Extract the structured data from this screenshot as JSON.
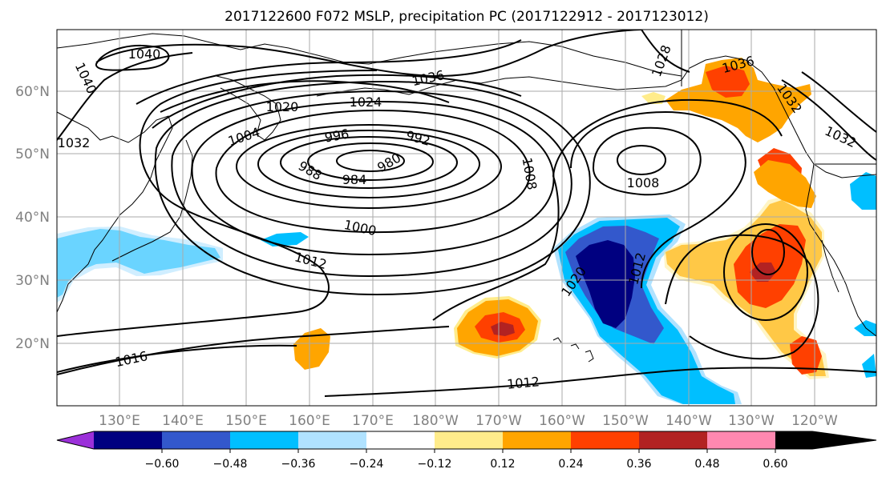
{
  "title": "2017122600 F072 MSLP, precipitation PC (2017122912 - 2017123012)",
  "lat_labels": [
    "60°N",
    "50°N",
    "40°N",
    "30°N",
    "20°N"
  ],
  "lon_labels": [
    "130°E",
    "140°E",
    "150°E",
    "160°E",
    "170°E",
    "180°W",
    "170°W",
    "160°W",
    "150°W",
    "140°W",
    "130°W",
    "120°W"
  ],
  "isobar_labels": [
    "1040",
    "1040",
    "1032",
    "1036",
    "1024",
    "1020",
    "1004",
    "996",
    "992",
    "988",
    "984",
    "980",
    "1008",
    "1008",
    "1000",
    "1012",
    "1020",
    "1012",
    "1016",
    "1012",
    "1028",
    "1036",
    "1032",
    "1032"
  ],
  "colorbar": {
    "ticks": [
      "−0.60",
      "−0.48",
      "−0.36",
      "−0.24",
      "−0.12",
      "0.12",
      "0.24",
      "0.36",
      "0.48",
      "0.60"
    ],
    "colors": [
      "#9b30d9",
      "#000080",
      "#3358cc",
      "#00bfff",
      "#b0e2ff",
      "#ffffff",
      "#ffec8b",
      "#ffa500",
      "#ff4000",
      "#b22222",
      "#ff88b0"
    ]
  },
  "shading_colors": {
    "c_n060": "#000080",
    "c_n048": "#3358cc",
    "c_n036": "#00bfff",
    "c_n024": "#b0e2ff",
    "c_p012": "#ffec8b",
    "c_p024": "#ffa500",
    "c_p036": "#ff4000",
    "c_p048": "#b22222"
  }
}
